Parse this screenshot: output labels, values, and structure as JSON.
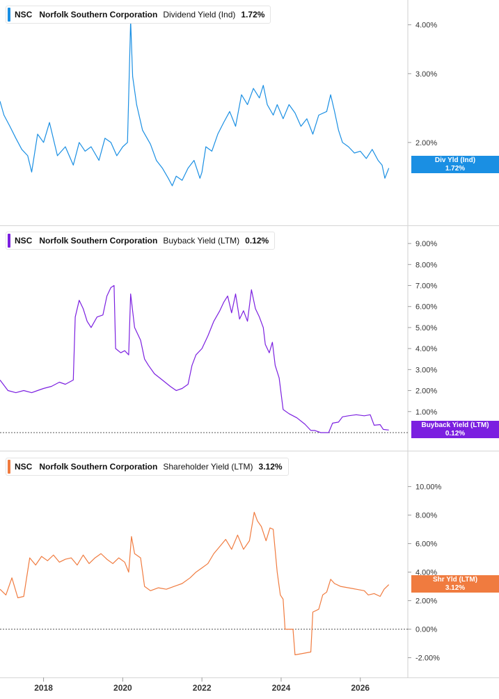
{
  "chart_data": [
    {
      "type": "line",
      "ticker": "NSC",
      "company": "Norfolk Southern Corporation",
      "metric": "Dividend Yield (Ind)",
      "current_value": "1.72%",
      "tag_label": "Div Yld (Ind)",
      "tag_value": "1.72%",
      "color": "#1a8fe3",
      "scale": "log",
      "ylim": [
        1.3,
        4.3
      ],
      "y_ticks": [
        {
          "v": 2.0,
          "label": "2.00%"
        },
        {
          "v": 3.0,
          "label": "3.00%"
        },
        {
          "v": 4.0,
          "label": "4.00%"
        }
      ],
      "zero_line": false,
      "points": [
        [
          2016.9,
          2.55
        ],
        [
          2017.0,
          2.35
        ],
        [
          2017.15,
          2.2
        ],
        [
          2017.3,
          2.05
        ],
        [
          2017.45,
          1.92
        ],
        [
          2017.6,
          1.85
        ],
        [
          2017.7,
          1.68
        ],
        [
          2017.85,
          2.1
        ],
        [
          2018.0,
          2.0
        ],
        [
          2018.15,
          2.25
        ],
        [
          2018.35,
          1.85
        ],
        [
          2018.55,
          1.95
        ],
        [
          2018.75,
          1.75
        ],
        [
          2018.9,
          2.0
        ],
        [
          2019.05,
          1.9
        ],
        [
          2019.2,
          1.95
        ],
        [
          2019.4,
          1.8
        ],
        [
          2019.55,
          2.05
        ],
        [
          2019.7,
          2.0
        ],
        [
          2019.85,
          1.85
        ],
        [
          2020.0,
          1.95
        ],
        [
          2020.12,
          2.0
        ],
        [
          2020.2,
          4.1
        ],
        [
          2020.25,
          2.95
        ],
        [
          2020.35,
          2.5
        ],
        [
          2020.5,
          2.15
        ],
        [
          2020.7,
          1.98
        ],
        [
          2020.85,
          1.8
        ],
        [
          2021.0,
          1.72
        ],
        [
          2021.15,
          1.62
        ],
        [
          2021.25,
          1.55
        ],
        [
          2021.35,
          1.64
        ],
        [
          2021.5,
          1.6
        ],
        [
          2021.65,
          1.72
        ],
        [
          2021.8,
          1.8
        ],
        [
          2021.95,
          1.62
        ],
        [
          2022.0,
          1.68
        ],
        [
          2022.1,
          1.95
        ],
        [
          2022.25,
          1.9
        ],
        [
          2022.4,
          2.1
        ],
        [
          2022.55,
          2.25
        ],
        [
          2022.7,
          2.4
        ],
        [
          2022.85,
          2.2
        ],
        [
          2023.0,
          2.65
        ],
        [
          2023.15,
          2.5
        ],
        [
          2023.3,
          2.75
        ],
        [
          2023.45,
          2.6
        ],
        [
          2023.55,
          2.8
        ],
        [
          2023.65,
          2.5
        ],
        [
          2023.8,
          2.35
        ],
        [
          2023.9,
          2.5
        ],
        [
          2024.05,
          2.3
        ],
        [
          2024.2,
          2.5
        ],
        [
          2024.35,
          2.38
        ],
        [
          2024.5,
          2.2
        ],
        [
          2024.65,
          2.3
        ],
        [
          2024.8,
          2.1
        ],
        [
          2024.95,
          2.35
        ],
        [
          2025.15,
          2.4
        ],
        [
          2025.25,
          2.65
        ],
        [
          2025.35,
          2.4
        ],
        [
          2025.45,
          2.15
        ],
        [
          2025.55,
          2.0
        ],
        [
          2025.7,
          1.95
        ],
        [
          2025.85,
          1.88
        ],
        [
          2026.0,
          1.9
        ],
        [
          2026.15,
          1.82
        ],
        [
          2026.3,
          1.92
        ],
        [
          2026.45,
          1.8
        ],
        [
          2026.55,
          1.75
        ],
        [
          2026.62,
          1.62
        ],
        [
          2026.7,
          1.7
        ],
        [
          2026.72,
          1.72
        ]
      ]
    },
    {
      "type": "line",
      "ticker": "NSC",
      "company": "Norfolk Southern Corporation",
      "metric": "Buyback Yield (LTM)",
      "current_value": "0.12%",
      "tag_label": "Buyback Yield (LTM)",
      "tag_value": "0.12%",
      "color": "#7b1fe0",
      "scale": "linear",
      "ylim": [
        -0.2,
        9.5
      ],
      "y_ticks": [
        {
          "v": 1,
          "label": "1.00%"
        },
        {
          "v": 2,
          "label": "2.00%"
        },
        {
          "v": 3,
          "label": "3.00%"
        },
        {
          "v": 4,
          "label": "4.00%"
        },
        {
          "v": 5,
          "label": "5.00%"
        },
        {
          "v": 6,
          "label": "6.00%"
        },
        {
          "v": 7,
          "label": "7.00%"
        },
        {
          "v": 8,
          "label": "8.00%"
        },
        {
          "v": 9,
          "label": "9.00%"
        }
      ],
      "zero_line": true,
      "points": [
        [
          2016.9,
          2.5
        ],
        [
          2017.1,
          2.0
        ],
        [
          2017.3,
          1.9
        ],
        [
          2017.5,
          2.0
        ],
        [
          2017.7,
          1.9
        ],
        [
          2017.85,
          2.0
        ],
        [
          2018.0,
          2.1
        ],
        [
          2018.2,
          2.2
        ],
        [
          2018.4,
          2.4
        ],
        [
          2018.55,
          2.3
        ],
        [
          2018.75,
          2.5
        ],
        [
          2018.8,
          5.5
        ],
        [
          2018.9,
          6.3
        ],
        [
          2019.0,
          5.9
        ],
        [
          2019.1,
          5.3
        ],
        [
          2019.2,
          5.0
        ],
        [
          2019.35,
          5.5
        ],
        [
          2019.5,
          5.6
        ],
        [
          2019.6,
          6.5
        ],
        [
          2019.7,
          6.9
        ],
        [
          2019.78,
          7.0
        ],
        [
          2019.82,
          4.0
        ],
        [
          2019.95,
          3.8
        ],
        [
          2020.05,
          3.9
        ],
        [
          2020.15,
          3.7
        ],
        [
          2020.2,
          6.6
        ],
        [
          2020.3,
          5.0
        ],
        [
          2020.45,
          4.4
        ],
        [
          2020.55,
          3.5
        ],
        [
          2020.65,
          3.2
        ],
        [
          2020.8,
          2.8
        ],
        [
          2021.0,
          2.5
        ],
        [
          2021.2,
          2.2
        ],
        [
          2021.35,
          2.0
        ],
        [
          2021.5,
          2.1
        ],
        [
          2021.65,
          2.3
        ],
        [
          2021.75,
          3.2
        ],
        [
          2021.85,
          3.7
        ],
        [
          2022.0,
          4.0
        ],
        [
          2022.15,
          4.6
        ],
        [
          2022.3,
          5.3
        ],
        [
          2022.45,
          5.8
        ],
        [
          2022.55,
          6.2
        ],
        [
          2022.65,
          6.5
        ],
        [
          2022.75,
          5.7
        ],
        [
          2022.85,
          6.6
        ],
        [
          2022.95,
          5.4
        ],
        [
          2023.05,
          5.8
        ],
        [
          2023.15,
          5.3
        ],
        [
          2023.25,
          6.8
        ],
        [
          2023.35,
          5.9
        ],
        [
          2023.45,
          5.5
        ],
        [
          2023.55,
          5.0
        ],
        [
          2023.6,
          4.2
        ],
        [
          2023.7,
          3.8
        ],
        [
          2023.78,
          4.3
        ],
        [
          2023.85,
          3.2
        ],
        [
          2023.95,
          2.6
        ],
        [
          2024.05,
          1.1
        ],
        [
          2024.2,
          0.9
        ],
        [
          2024.4,
          0.7
        ],
        [
          2024.6,
          0.4
        ],
        [
          2024.75,
          0.1
        ],
        [
          2024.85,
          0.1
        ],
        [
          2025.0,
          0.0
        ],
        [
          2025.2,
          0.0
        ],
        [
          2025.3,
          0.45
        ],
        [
          2025.45,
          0.5
        ],
        [
          2025.55,
          0.75
        ],
        [
          2025.7,
          0.8
        ],
        [
          2025.9,
          0.85
        ],
        [
          2026.1,
          0.8
        ],
        [
          2026.25,
          0.85
        ],
        [
          2026.35,
          0.35
        ],
        [
          2026.5,
          0.38
        ],
        [
          2026.58,
          0.15
        ],
        [
          2026.72,
          0.12
        ]
      ]
    },
    {
      "type": "line",
      "ticker": "NSC",
      "company": "Norfolk Southern Corporation",
      "metric": "Shareholder Yield (LTM)",
      "current_value": "3.12%",
      "tag_label": "Shr Yld (LTM)",
      "tag_value": "3.12%",
      "color": "#f07b3f",
      "scale": "linear",
      "ylim": [
        -2.8,
        11.2
      ],
      "y_ticks": [
        {
          "v": -2,
          "label": "-2.00%"
        },
        {
          "v": 0,
          "label": "0.00%"
        },
        {
          "v": 2,
          "label": "2.00%"
        },
        {
          "v": 4,
          "label": "4.00%"
        },
        {
          "v": 6,
          "label": "6.00%"
        },
        {
          "v": 8,
          "label": "8.00%"
        },
        {
          "v": 10,
          "label": "10.00%"
        }
      ],
      "zero_line": true,
      "points": [
        [
          2016.9,
          2.8
        ],
        [
          2017.05,
          2.4
        ],
        [
          2017.2,
          3.6
        ],
        [
          2017.35,
          2.2
        ],
        [
          2017.5,
          2.3
        ],
        [
          2017.65,
          5.0
        ],
        [
          2017.8,
          4.5
        ],
        [
          2017.95,
          5.1
        ],
        [
          2018.1,
          4.8
        ],
        [
          2018.25,
          5.2
        ],
        [
          2018.4,
          4.7
        ],
        [
          2018.55,
          4.9
        ],
        [
          2018.7,
          5.0
        ],
        [
          2018.85,
          4.5
        ],
        [
          2019.0,
          5.2
        ],
        [
          2019.15,
          4.6
        ],
        [
          2019.3,
          5.0
        ],
        [
          2019.45,
          5.3
        ],
        [
          2019.6,
          4.9
        ],
        [
          2019.75,
          4.6
        ],
        [
          2019.9,
          5.0
        ],
        [
          2020.05,
          4.7
        ],
        [
          2020.15,
          4.0
        ],
        [
          2020.22,
          6.5
        ],
        [
          2020.3,
          5.3
        ],
        [
          2020.45,
          5.0
        ],
        [
          2020.55,
          3.0
        ],
        [
          2020.7,
          2.7
        ],
        [
          2020.9,
          2.9
        ],
        [
          2021.1,
          2.8
        ],
        [
          2021.3,
          3.0
        ],
        [
          2021.5,
          3.2
        ],
        [
          2021.7,
          3.6
        ],
        [
          2021.85,
          4.0
        ],
        [
          2022.0,
          4.3
        ],
        [
          2022.15,
          4.6
        ],
        [
          2022.3,
          5.3
        ],
        [
          2022.45,
          5.8
        ],
        [
          2022.6,
          6.3
        ],
        [
          2022.75,
          5.6
        ],
        [
          2022.9,
          6.6
        ],
        [
          2023.05,
          5.6
        ],
        [
          2023.2,
          6.2
        ],
        [
          2023.32,
          8.2
        ],
        [
          2023.4,
          7.6
        ],
        [
          2023.5,
          7.2
        ],
        [
          2023.62,
          6.2
        ],
        [
          2023.72,
          7.1
        ],
        [
          2023.8,
          7.0
        ],
        [
          2023.9,
          4.0
        ],
        [
          2023.98,
          2.4
        ],
        [
          2024.05,
          2.1
        ],
        [
          2024.1,
          0.0
        ],
        [
          2024.3,
          0.0
        ],
        [
          2024.35,
          -1.8
        ],
        [
          2024.55,
          -1.7
        ],
        [
          2024.75,
          -1.6
        ],
        [
          2024.8,
          1.2
        ],
        [
          2024.95,
          1.4
        ],
        [
          2025.05,
          2.4
        ],
        [
          2025.15,
          2.6
        ],
        [
          2025.25,
          3.5
        ],
        [
          2025.35,
          3.2
        ],
        [
          2025.5,
          3.0
        ],
        [
          2025.7,
          2.9
        ],
        [
          2025.9,
          2.8
        ],
        [
          2026.1,
          2.7
        ],
        [
          2026.2,
          2.4
        ],
        [
          2026.35,
          2.5
        ],
        [
          2026.5,
          2.3
        ],
        [
          2026.6,
          2.8
        ],
        [
          2026.72,
          3.12
        ]
      ]
    }
  ],
  "x_axis": {
    "ticks": [
      {
        "v": 2018,
        "label": "2018"
      },
      {
        "v": 2020,
        "label": "2020"
      },
      {
        "v": 2022,
        "label": "2022"
      },
      {
        "v": 2024,
        "label": "2024"
      },
      {
        "v": 2026,
        "label": "2026"
      }
    ]
  }
}
